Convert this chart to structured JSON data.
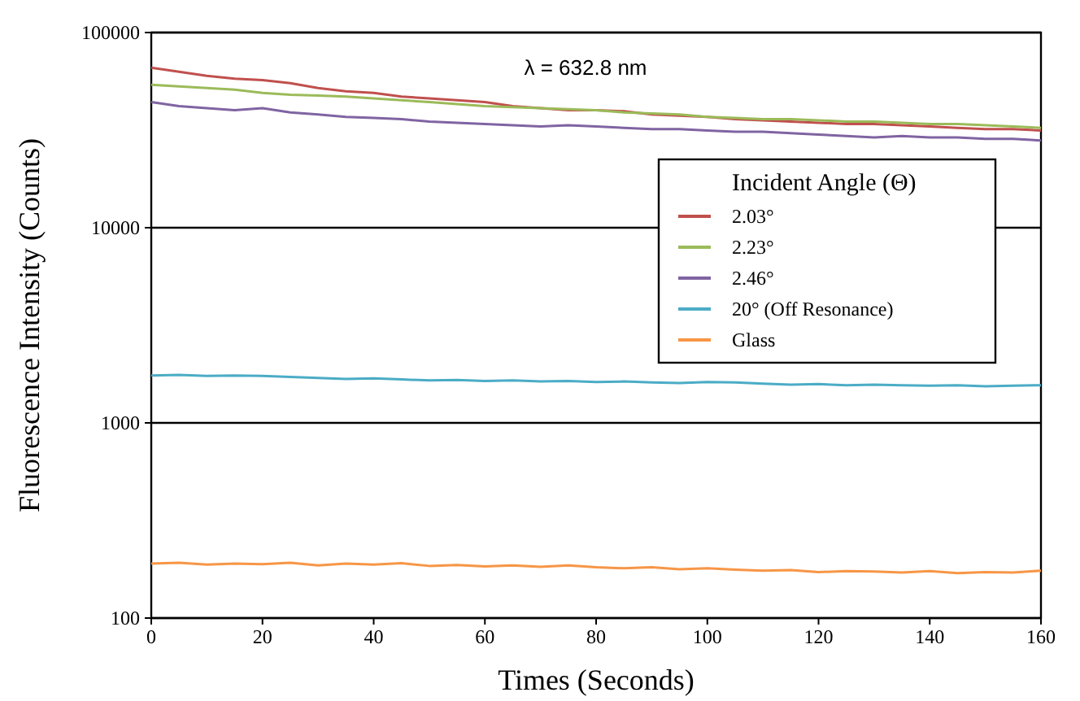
{
  "chart_data": {
    "type": "line",
    "xlabel": "Times (Seconds)",
    "ylabel": "Fluorescence Intensity (Counts)",
    "legend_title": "Incident Angle (Θ)",
    "annotations": [
      "λ = 632.8 nm"
    ],
    "x": [
      0,
      5,
      10,
      15,
      20,
      25,
      30,
      35,
      40,
      45,
      50,
      55,
      60,
      65,
      70,
      75,
      80,
      85,
      90,
      95,
      100,
      105,
      110,
      115,
      120,
      125,
      130,
      135,
      140,
      145,
      150,
      155,
      160
    ],
    "series": [
      {
        "name": "2.03°",
        "color": "#c0504d",
        "values": [
          66000,
          63000,
          60000,
          58000,
          57000,
          55000,
          52000,
          50000,
          49000,
          47000,
          46000,
          45000,
          44000,
          42000,
          41000,
          40000,
          40000,
          39500,
          38000,
          37500,
          37000,
          36000,
          35500,
          35000,
          34500,
          34000,
          34000,
          33500,
          33000,
          32500,
          32000,
          32000,
          31500
        ]
      },
      {
        "name": "2.23°",
        "color": "#9bbb59",
        "values": [
          54000,
          53000,
          52000,
          51000,
          49000,
          48000,
          47500,
          47000,
          46000,
          45000,
          44000,
          43000,
          42000,
          41500,
          41000,
          40500,
          40000,
          39000,
          38500,
          38000,
          37000,
          36500,
          36000,
          36000,
          35500,
          35000,
          35000,
          34500,
          34000,
          34000,
          33500,
          33000,
          32500
        ]
      },
      {
        "name": "2.46°",
        "color": "#8064a2",
        "values": [
          44000,
          42000,
          41000,
          40000,
          41000,
          39000,
          38000,
          37000,
          36500,
          36000,
          35000,
          34500,
          34000,
          33500,
          33000,
          33500,
          33000,
          32500,
          32000,
          32000,
          31500,
          31000,
          31000,
          30500,
          30000,
          29500,
          29000,
          29500,
          29000,
          29000,
          28500,
          28500,
          28000
        ]
      },
      {
        "name": "20° (Off Resonance)",
        "color": "#4bacc6",
        "values": [
          1750,
          1760,
          1740,
          1750,
          1740,
          1720,
          1700,
          1680,
          1690,
          1670,
          1650,
          1660,
          1640,
          1650,
          1630,
          1640,
          1620,
          1630,
          1610,
          1600,
          1620,
          1610,
          1590,
          1570,
          1580,
          1560,
          1570,
          1560,
          1550,
          1560,
          1540,
          1550,
          1560
        ]
      },
      {
        "name": "Glass",
        "color": "#f79646",
        "values": [
          190,
          192,
          188,
          190,
          189,
          192,
          186,
          190,
          188,
          191,
          185,
          187,
          184,
          186,
          183,
          186,
          182,
          180,
          182,
          178,
          180,
          177,
          175,
          176,
          172,
          174,
          173,
          171,
          174,
          170,
          172,
          171,
          175
        ]
      }
    ],
    "xlim": [
      0,
      160
    ],
    "xticks": [
      0,
      20,
      40,
      60,
      80,
      100,
      120,
      140,
      160
    ],
    "ylim": [
      100,
      100000
    ],
    "yticks": [
      100,
      1000,
      10000,
      100000
    ],
    "log": "y",
    "grid": "y",
    "legend": "right",
    "marker": "none",
    "line_style": "solid"
  }
}
